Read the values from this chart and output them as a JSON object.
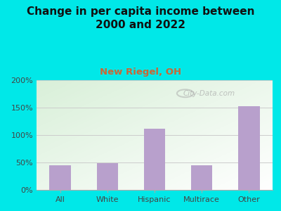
{
  "title": "Change in per capita income between\n2000 and 2022",
  "subtitle": "New Riegel, OH",
  "categories": [
    "All",
    "White",
    "Hispanic",
    "Multirace",
    "Other"
  ],
  "values": [
    45,
    49,
    112,
    45,
    153
  ],
  "bar_color": "#b8a0cc",
  "title_fontsize": 11,
  "title_color": "#111111",
  "subtitle_color": "#cc6633",
  "subtitle_fontsize": 9.5,
  "bg_outer_color": "#00e8e8",
  "ylim": [
    0,
    200
  ],
  "yticks": [
    0,
    50,
    100,
    150,
    200
  ],
  "ytick_labels": [
    "0%",
    "50%",
    "100%",
    "150%",
    "200%"
  ],
  "watermark": "City-Data.com",
  "grid_color": "#cccccc",
  "plot_bg_green": "#d8efd0",
  "plot_bg_white": "#f8fff8"
}
